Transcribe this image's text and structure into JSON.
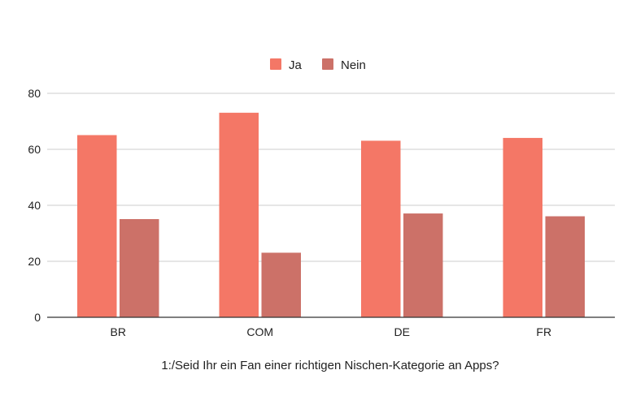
{
  "chart_data": {
    "type": "bar",
    "title": "",
    "xlabel": "1:/Seid Ihr ein Fan einer richtigen Nischen-Kategorie an Apps?",
    "ylabel": "",
    "categories": [
      "BR",
      "COM",
      "DE",
      "FR"
    ],
    "ylim": [
      0,
      80
    ],
    "yticks": [
      0,
      20,
      40,
      60,
      80
    ],
    "grid": true,
    "legend_position": "top-center",
    "series": [
      {
        "name": "Ja",
        "color": "#f47766",
        "values": [
          65,
          73,
          63,
          64
        ]
      },
      {
        "name": "Nein",
        "color": "#cc7168",
        "values": [
          35,
          23,
          37,
          36
        ]
      }
    ]
  }
}
